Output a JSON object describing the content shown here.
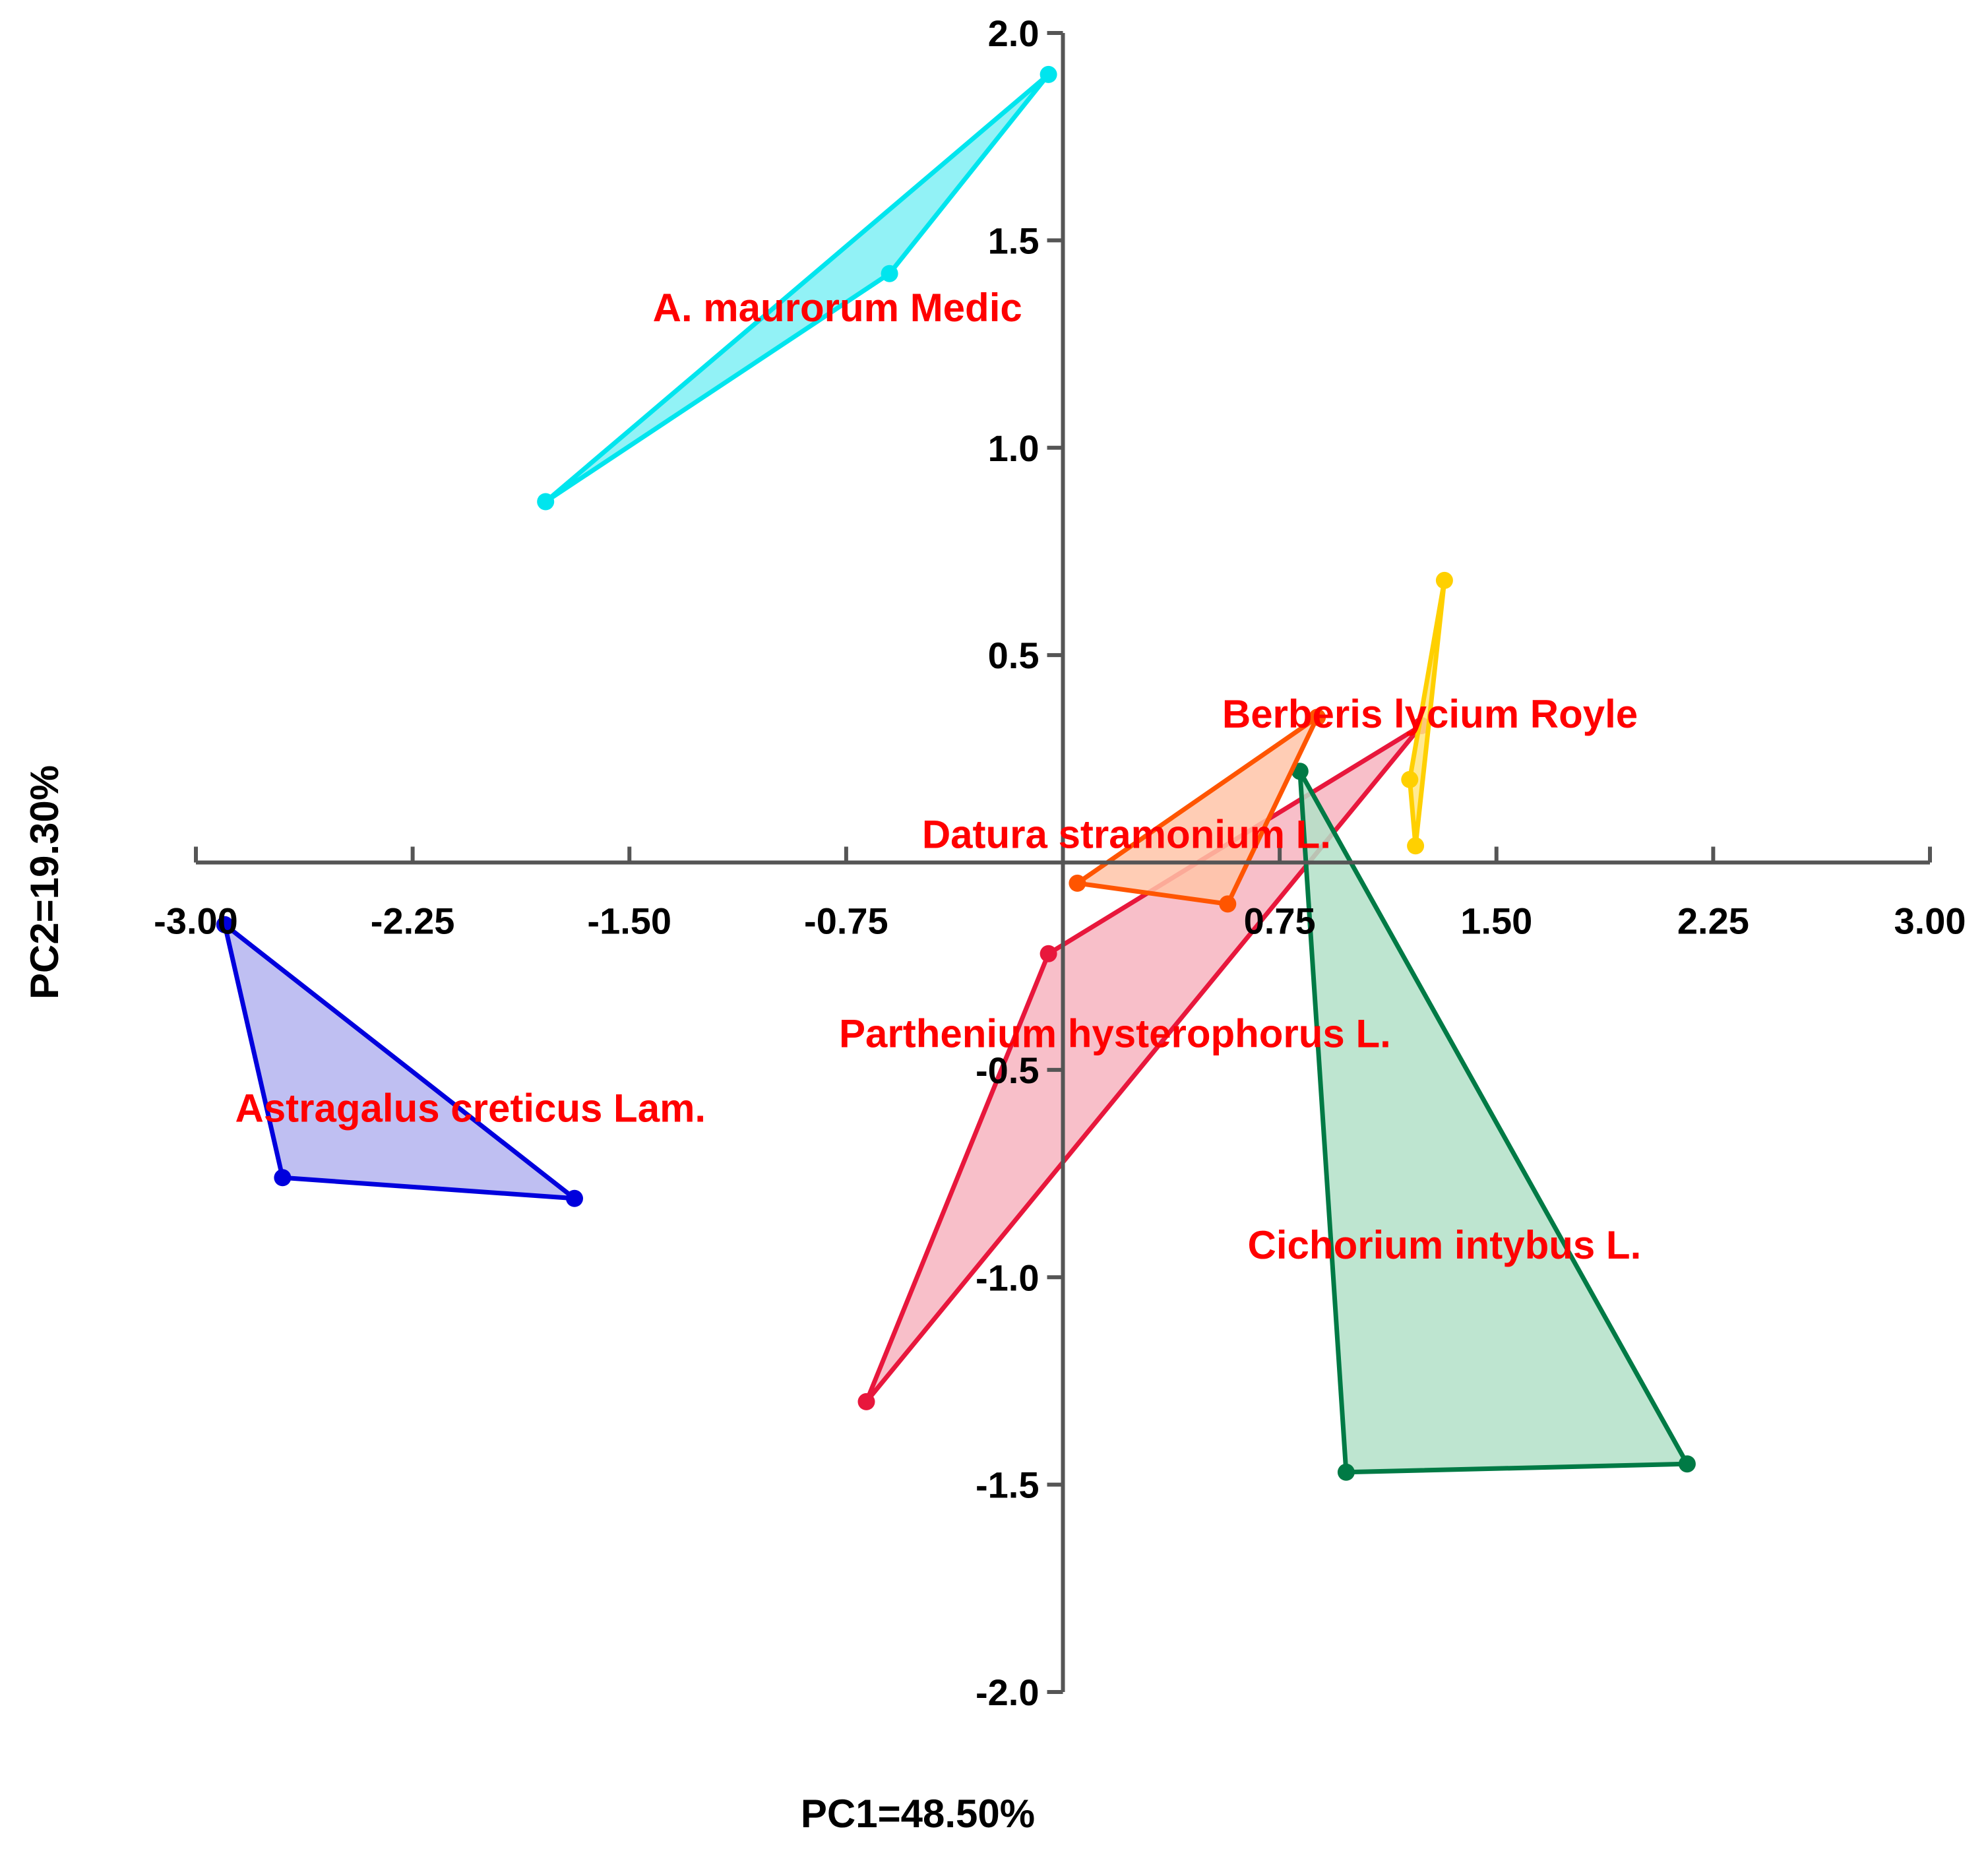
{
  "chart_data": {
    "type": "scatter",
    "subtype": "pca-convex-hulls",
    "title": "",
    "xlabel": "PC1=48.50%",
    "ylabel": "PC2=19.30%",
    "xlim": [
      -3.0,
      3.0
    ],
    "ylim": [
      -2.0,
      2.0
    ],
    "x_ticks": [
      -3.0,
      -2.25,
      -1.5,
      -0.75,
      0.75,
      1.5,
      2.25,
      3.0
    ],
    "x_tick_labels": [
      "-3.00",
      "-2.25",
      "-1.50",
      "-0.75",
      "0.75",
      "1.50",
      "2.25",
      "3.00"
    ],
    "y_ticks": [
      2.0,
      1.5,
      1.0,
      0.5,
      -0.5,
      -1.0,
      -1.5,
      -2.0
    ],
    "y_tick_labels": [
      "2.0",
      "1.5",
      "1.0",
      "0.5",
      "-0.5",
      "-1.0",
      "-1.5",
      "-2.0"
    ],
    "grid": false,
    "legend": "none",
    "label_color": "#ff0000",
    "groups": [
      {
        "label": "A. maurorum Medic",
        "color": "#00e5ee",
        "fill": "#7ff0f5",
        "points": [
          [
            -1.79,
            0.87
          ],
          [
            -0.05,
            1.9
          ],
          [
            -0.6,
            1.42
          ]
        ]
      },
      {
        "label": "Astragalus creticus Lam.",
        "color": "#0000dd",
        "fill": "#b4b4f0",
        "points": [
          [
            -2.9,
            -0.15
          ],
          [
            -2.7,
            -0.76
          ],
          [
            -1.69,
            -0.81
          ]
        ]
      },
      {
        "label": "Parthenium hysterophorus L.",
        "color": "#e8173c",
        "fill": "#f7b4c0",
        "points": [
          [
            -0.68,
            -1.3
          ],
          [
            -0.05,
            -0.22
          ],
          [
            1.24,
            0.33
          ]
        ]
      },
      {
        "label": "Cichorium intybus L.",
        "color": "#007a45",
        "fill": "#b3e0c8",
        "points": [
          [
            0.82,
            0.22
          ],
          [
            0.98,
            -1.47
          ],
          [
            2.16,
            -1.45
          ]
        ]
      },
      {
        "label": "Datura stramonium L.",
        "color": "#ff5500",
        "fill": "#ffc4a8",
        "points": [
          [
            0.05,
            -0.05
          ],
          [
            0.57,
            -0.1
          ],
          [
            0.88,
            0.35
          ]
        ]
      },
      {
        "label": "Berberis lycium Royle",
        "color": "#ffd000",
        "fill": "#ffe680",
        "points": [
          [
            1.2,
            0.2
          ],
          [
            1.32,
            0.68
          ],
          [
            1.22,
            0.04
          ]
        ]
      }
    ]
  }
}
